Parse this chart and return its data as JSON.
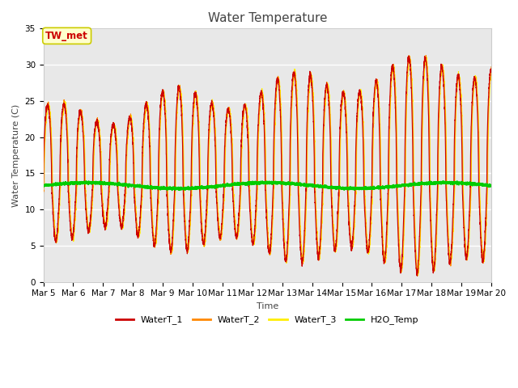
{
  "title": "Water Temperature",
  "xlabel": "Time",
  "ylabel": "Water Temperature (C)",
  "ylim": [
    0,
    35
  ],
  "yticks": [
    0,
    5,
    10,
    15,
    20,
    25,
    30,
    35
  ],
  "xtick_labels": [
    "Mar 5",
    "Mar 6",
    "Mar 7",
    "Mar 8",
    "Mar 9",
    "Mar 10",
    "Mar 11",
    "Mar 12",
    "Mar 13",
    "Mar 14",
    "Mar 15",
    "Mar 16",
    "Mar 17",
    "Mar 18",
    "Mar 19",
    "Mar 20"
  ],
  "color_water1": "#CC0000",
  "color_water2": "#FF8800",
  "color_water3": "#FFEE00",
  "color_h2o": "#00CC00",
  "linewidth_water": 0.8,
  "linewidth_h2o": 1.5,
  "bg_color": "#E8E8E8",
  "annotation_text": "TW_met",
  "annotation_color": "#CC0000",
  "annotation_bg": "#FFFFCC",
  "annotation_border": "#CCCC00",
  "legend_labels": [
    "WaterT_1",
    "WaterT_2",
    "WaterT_3",
    "H2O_Temp"
  ],
  "title_fontsize": 11,
  "axis_label_fontsize": 8,
  "tick_fontsize": 7.5,
  "legend_fontsize": 8
}
